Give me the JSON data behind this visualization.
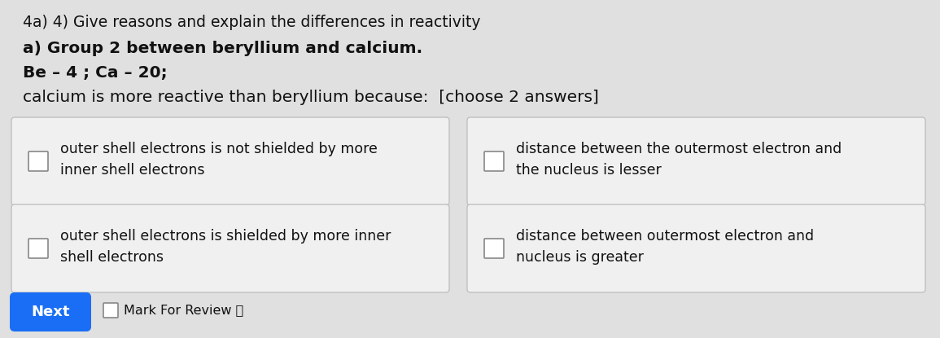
{
  "bg_color": "#e0e0e0",
  "title_lines": [
    "4a) 4) Give reasons and explain the differences in reactivity",
    "a) Group 2 between beryllium and calcium.",
    "Be – 4 ; Ca – 20;",
    "calcium is more reactive than beryllium because:  [choose 2 answers]"
  ],
  "title_fontsizes": [
    13.5,
    14.5,
    14.5,
    14.5
  ],
  "title_fontweights": [
    "normal",
    "bold",
    "bold",
    "normal"
  ],
  "options": [
    {
      "text": "outer shell electrons is not shielded by more\ninner shell electrons",
      "col": 0,
      "row": 0
    },
    {
      "text": "distance between the outermost electron and\nthe nucleus is lesser",
      "col": 1,
      "row": 0
    },
    {
      "text": "outer shell electrons is shielded by more inner\nshell electrons",
      "col": 0,
      "row": 1
    },
    {
      "text": "distance between outermost electron and\nnucleus is greater",
      "col": 1,
      "row": 1
    }
  ],
  "next_btn_color": "#1a6ef5",
  "next_btn_text": "Next",
  "mark_review_text": "Mark For Review",
  "box_facecolor": "#f0f0f0",
  "box_edgecolor": "#c0c0c0",
  "checkbox_facecolor": "#ffffff",
  "checkbox_edgecolor": "#888888",
  "text_color": "#111111",
  "option_fontsize": 12.5,
  "btn_fontsize": 13,
  "mark_fontsize": 11.5
}
